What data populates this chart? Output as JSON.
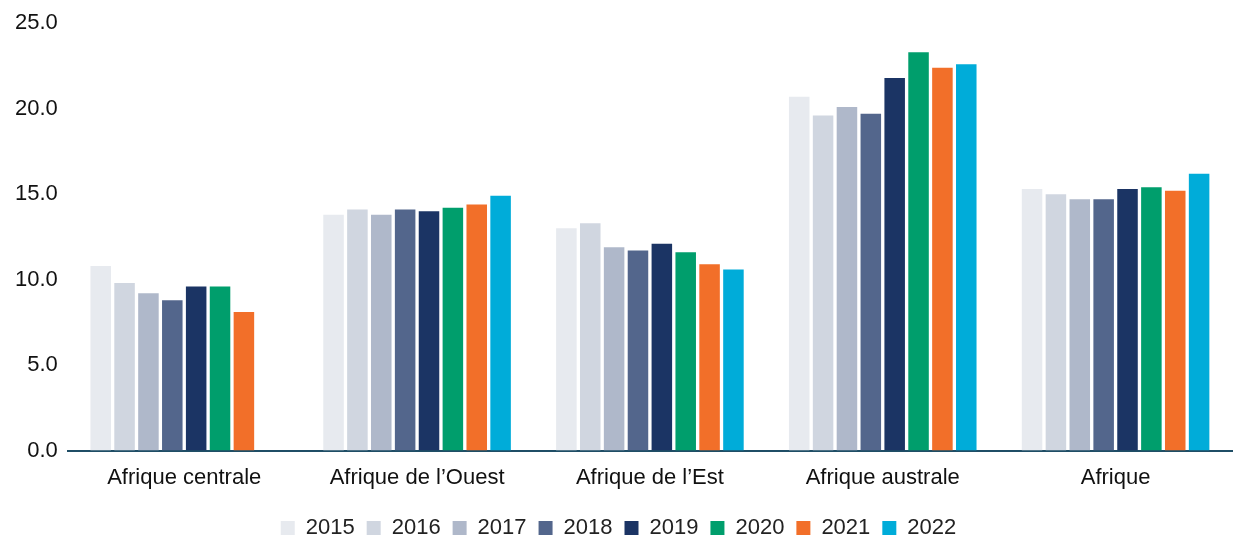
{
  "chart_data": {
    "type": "bar",
    "categories": [
      "Afrique centrale",
      "Afrique de l’Ouest",
      "Afrique de l’Est",
      "Afrique australe",
      "Afrique"
    ],
    "series": [
      {
        "name": "2015",
        "color": "#e7eaef",
        "values": [
          10.8,
          13.8,
          13.0,
          20.7,
          15.3
        ]
      },
      {
        "name": "2016",
        "color": "#d0d6e0",
        "values": [
          9.8,
          14.1,
          13.3,
          19.6,
          15.0
        ]
      },
      {
        "name": "2017",
        "color": "#afb8ca",
        "values": [
          9.2,
          13.8,
          11.9,
          20.1,
          14.7
        ]
      },
      {
        "name": "2018",
        "color": "#53668c",
        "values": [
          8.8,
          14.1,
          11.7,
          19.7,
          14.7
        ]
      },
      {
        "name": "2019",
        "color": "#1b3464",
        "values": [
          9.6,
          14.0,
          12.1,
          21.8,
          15.3
        ]
      },
      {
        "name": "2020",
        "color": "#009e6c",
        "values": [
          9.6,
          14.2,
          11.6,
          23.3,
          15.4
        ]
      },
      {
        "name": "2021",
        "color": "#f26f29",
        "values": [
          8.1,
          14.4,
          10.9,
          22.4,
          15.2
        ]
      },
      {
        "name": "2022",
        "color": "#00acd9",
        "values": [
          null,
          14.9,
          10.6,
          22.6,
          16.2
        ]
      }
    ],
    "ylim": [
      0,
      25
    ],
    "yticks": [
      {
        "value": 0,
        "label": "0.0"
      },
      {
        "value": 5,
        "label": "5.0"
      },
      {
        "value": 10,
        "label": "10.0"
      },
      {
        "value": 15,
        "label": "15.0"
      },
      {
        "value": 20,
        "label": "20.0"
      },
      {
        "value": 25,
        "label": "25.0"
      }
    ],
    "grid": false,
    "legend": "bottom"
  }
}
